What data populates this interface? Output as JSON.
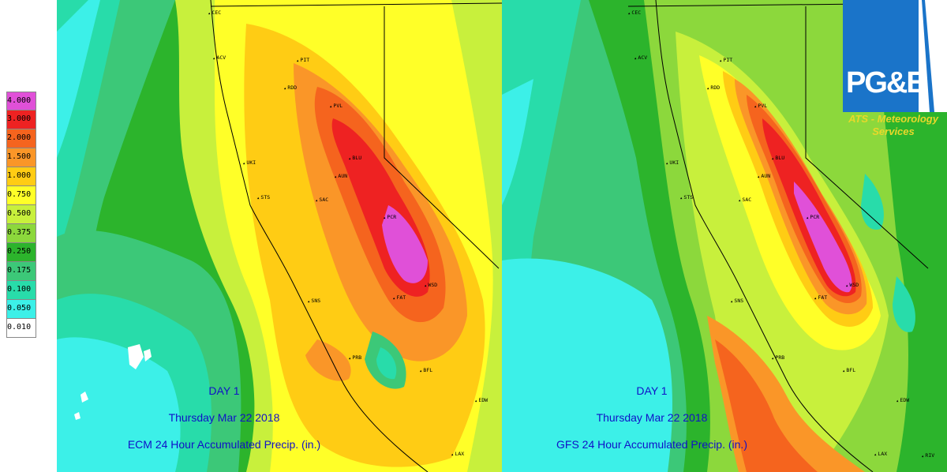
{
  "legend": {
    "labels": [
      "4.000",
      "3.000",
      "2.000",
      "1.500",
      "1.000",
      "0.750",
      "0.500",
      "0.375",
      "0.250",
      "0.175",
      "0.100",
      "0.050",
      "0.010"
    ],
    "colors": [
      "#e050d8",
      "#ee2222",
      "#f5641e",
      "#fa9628",
      "#ffcc14",
      "#ffff28",
      "#c8f03c",
      "#8cd83c",
      "#2cb42c",
      "#3cc878",
      "#28dcaa",
      "#3cf0e8",
      "#ffffff"
    ]
  },
  "panels": [
    {
      "day_label": "DAY 1",
      "date_label": "Thursday Mar 22 2018",
      "model_label": "ECM 24 Hour Accumulated Precip. (in.)"
    },
    {
      "day_label": "DAY 1",
      "date_label": "Thursday Mar 22 2018",
      "model_label": "GFS 24 Hour Accumulated Precip. (in.)"
    }
  ],
  "stations": {
    "left": [
      "CEC",
      "ACV",
      "PIT",
      "RDD",
      "PVL",
      "BLU",
      "UKI",
      "AUN",
      "STS",
      "SAC",
      "PCR",
      "WSD",
      "SNS",
      "FAT",
      "PRB",
      "BFL",
      "EDW",
      "LAX"
    ],
    "right": [
      "CEC",
      "ACV",
      "PIT",
      "RDD",
      "PVL",
      "BLU",
      "UKI",
      "AUN",
      "STS",
      "SAC",
      "PCR",
      "WSD",
      "SNS",
      "FAT",
      "PRB",
      "BFL",
      "EDW",
      "LAX",
      "RIV"
    ]
  },
  "logo": {
    "brand": "PG&E",
    "line1": "ATS - Meteorology",
    "line2": "Services"
  }
}
